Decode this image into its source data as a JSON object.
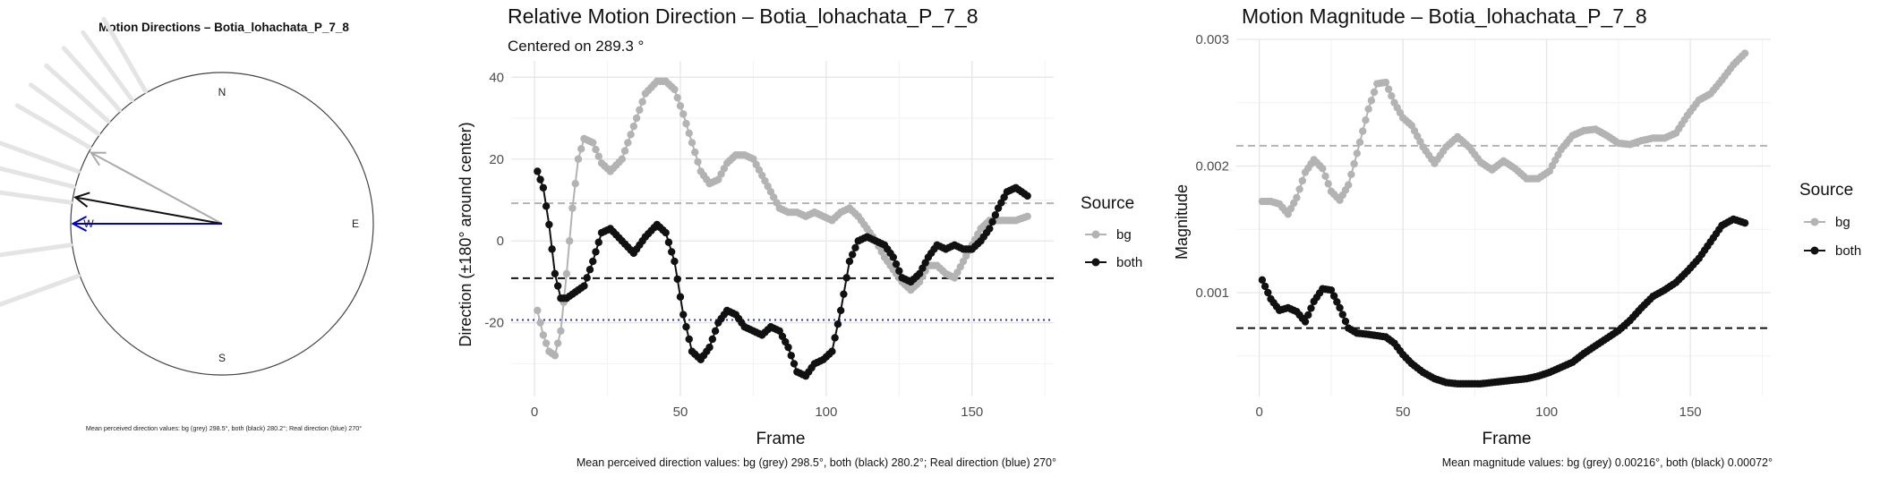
{
  "chart_data": [
    {
      "type": "compass",
      "title": "Motion Directions – Botia_lohachata_P_7_8",
      "compass_labels": {
        "n": "N",
        "e": "E",
        "s": "S",
        "w": "W"
      },
      "arrows": [
        {
          "name": "bg",
          "angle_deg": 298.5,
          "color": "#aaaaaa"
        },
        {
          "name": "both",
          "angle_deg": 280.2,
          "color": "#111111"
        },
        {
          "name": "real",
          "angle_deg": 270,
          "color": "#0000cc"
        }
      ],
      "background_rays_deg": [
        300,
        306,
        312,
        318,
        324,
        330,
        290,
        284,
        278,
        262,
        250
      ],
      "caption": "Mean perceived direction values: bg (grey) 298.5°, both (black) 280.2°; Real direction (blue) 270°"
    },
    {
      "type": "line",
      "title": "Relative Motion Direction – Botia_lohachata_P_7_8",
      "subtitle": "Centered on  289.3 °",
      "xlabel": "Frame",
      "ylabel": "Direction (±180° around center)",
      "xlim": [
        -8,
        178
      ],
      "ylim": [
        -38,
        44
      ],
      "xticks": [
        0,
        50,
        100,
        150
      ],
      "yticks": [
        -20,
        0,
        20,
        40
      ],
      "legend_title": "Source",
      "series": [
        {
          "name": "bg",
          "color": "#b3b3b3",
          "x": [
            1,
            3,
            5,
            7,
            9,
            11,
            13,
            15,
            17,
            20,
            23,
            26,
            30,
            34,
            38,
            42,
            45,
            48,
            51,
            54,
            57,
            60,
            63,
            66,
            69,
            72,
            75,
            78,
            81,
            84,
            87,
            90,
            93,
            96,
            99,
            102,
            105,
            108,
            111,
            114,
            117,
            120,
            123,
            126,
            129,
            132,
            135,
            138,
            141,
            144,
            147,
            150,
            153,
            156,
            159,
            162,
            165,
            169
          ],
          "y": [
            -17,
            -23,
            -27,
            -28,
            -22,
            -8,
            8,
            20,
            25,
            24,
            19,
            17,
            20,
            28,
            36,
            39,
            39,
            37,
            31,
            24,
            17,
            14,
            15,
            19,
            21,
            21,
            20,
            16,
            12,
            8,
            7,
            7,
            6,
            7,
            6,
            5,
            7,
            8,
            6,
            3,
            0,
            -4,
            -7,
            -10,
            -12,
            -10,
            -6,
            -6,
            -8,
            -9,
            -5,
            -1,
            3,
            5,
            5,
            5,
            5,
            6
          ]
        },
        {
          "name": "both",
          "color": "#111111",
          "x": [
            1,
            3,
            5,
            7,
            9,
            11,
            13,
            15,
            17,
            20,
            23,
            26,
            30,
            34,
            38,
            42,
            45,
            48,
            51,
            54,
            57,
            60,
            63,
            66,
            69,
            72,
            75,
            78,
            81,
            84,
            87,
            90,
            93,
            96,
            99,
            102,
            105,
            108,
            111,
            114,
            117,
            120,
            123,
            126,
            129,
            132,
            135,
            138,
            141,
            144,
            147,
            150,
            153,
            156,
            159,
            162,
            165,
            169
          ],
          "y": [
            17,
            13,
            4,
            -8,
            -14,
            -14,
            -13,
            -12,
            -11,
            -5,
            2,
            3,
            0,
            -3,
            1,
            4,
            2,
            -5,
            -18,
            -27,
            -29,
            -26,
            -20,
            -17,
            -18,
            -21,
            -22,
            -23,
            -21,
            -22,
            -26,
            -32,
            -33,
            -30,
            -29,
            -27,
            -17,
            -5,
            0,
            1,
            0,
            -1,
            -4,
            -9,
            -10,
            -8,
            -4,
            -1,
            -2,
            -1,
            -2,
            -2,
            0,
            3,
            8,
            12,
            13,
            11
          ]
        }
      ],
      "reference_lines": [
        {
          "y": 9.2,
          "color": "#b3b3b3",
          "style": "dashed"
        },
        {
          "y": -9.1,
          "color": "#111111",
          "style": "dashed"
        },
        {
          "y": -19.3,
          "color": "#3333cc",
          "style": "dotted"
        }
      ],
      "caption": "Mean perceived direction values: bg (grey) 298.5°, both (black) 280.2°; Real direction (blue) 270°"
    },
    {
      "type": "line",
      "title": "Motion Magnitude – Botia_lohachata_P_7_8",
      "xlabel": "Frame",
      "ylabel": "Magnitude",
      "xlim": [
        -8,
        178
      ],
      "ylim": [
        0.00018,
        0.003
      ],
      "xticks": [
        0,
        50,
        100,
        150
      ],
      "yticks": [
        0.001,
        0.002,
        0.003
      ],
      "ytick_labels": [
        "0.001",
        "0.002",
        "0.003"
      ],
      "legend_title": "Source",
      "series": [
        {
          "name": "bg",
          "color": "#b3b3b3",
          "x": [
            1,
            4,
            7,
            10,
            13,
            16,
            19,
            22,
            25,
            28,
            31,
            34,
            38,
            41,
            44,
            47,
            50,
            53,
            57,
            61,
            65,
            69,
            73,
            77,
            81,
            85,
            89,
            93,
            97,
            101,
            105,
            109,
            113,
            117,
            121,
            125,
            129,
            133,
            137,
            141,
            145,
            149,
            153,
            157,
            161,
            165,
            169
          ],
          "y": [
            0.00172,
            0.00172,
            0.0017,
            0.00162,
            0.00175,
            0.00195,
            0.00205,
            0.00198,
            0.0018,
            0.00173,
            0.00185,
            0.0021,
            0.00245,
            0.00265,
            0.00266,
            0.0025,
            0.00238,
            0.00232,
            0.00215,
            0.00202,
            0.00215,
            0.00223,
            0.00215,
            0.00203,
            0.00197,
            0.00204,
            0.00198,
            0.0019,
            0.0019,
            0.00196,
            0.00213,
            0.00224,
            0.00228,
            0.00229,
            0.00224,
            0.00218,
            0.00217,
            0.0022,
            0.00222,
            0.00222,
            0.00226,
            0.0024,
            0.00252,
            0.00257,
            0.00268,
            0.0028,
            0.00289
          ]
        },
        {
          "name": "both",
          "color": "#111111",
          "x": [
            1,
            4,
            7,
            10,
            13,
            16,
            19,
            22,
            25,
            28,
            31,
            34,
            38,
            41,
            44,
            47,
            50,
            53,
            57,
            61,
            65,
            69,
            73,
            77,
            81,
            85,
            89,
            93,
            97,
            101,
            105,
            109,
            113,
            117,
            121,
            125,
            129,
            133,
            137,
            141,
            145,
            149,
            153,
            157,
            161,
            165,
            169
          ],
          "y": [
            0.0011,
            0.00095,
            0.00086,
            0.00088,
            0.00085,
            0.00077,
            0.00093,
            0.00103,
            0.00102,
            0.00088,
            0.00072,
            0.00068,
            0.00067,
            0.00066,
            0.00065,
            0.0006,
            0.00051,
            0.00044,
            0.00037,
            0.00032,
            0.00029,
            0.00028,
            0.00028,
            0.00028,
            0.00029,
            0.0003,
            0.00031,
            0.00032,
            0.00034,
            0.00037,
            0.00041,
            0.00045,
            0.00052,
            0.00058,
            0.00064,
            0.0007,
            0.00078,
            0.00088,
            0.00097,
            0.00102,
            0.00108,
            0.00117,
            0.00127,
            0.0014,
            0.00153,
            0.00158,
            0.00155
          ]
        }
      ],
      "reference_lines": [
        {
          "y": 0.00216,
          "color": "#b3b3b3",
          "style": "dashed"
        },
        {
          "y": 0.00072,
          "color": "#111111",
          "style": "dashed"
        }
      ],
      "caption": "Mean magnitude values: bg (grey) 0.00216°, both (black) 0.00072°"
    }
  ]
}
